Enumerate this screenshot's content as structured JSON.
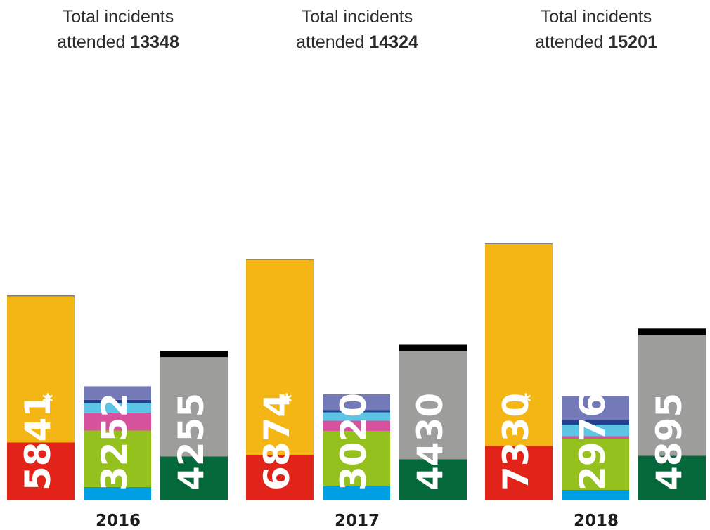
{
  "chart_data": {
    "type": "stacked-bar",
    "groups": [
      {
        "year": "2016",
        "heading": "Total incidents",
        "heading_line2": "attended",
        "total": "13348",
        "bars": [
          {
            "label": "5841",
            "asterisk": "*",
            "value": 5841,
            "segments": [
              {
                "value": 1650,
                "color": "#e2231a"
              },
              {
                "value": 4160,
                "color": "#f4b614"
              },
              {
                "value": 31,
                "color": "#7f7f7f"
              }
            ]
          },
          {
            "label": "3252",
            "asterisk": "",
            "value": 3252,
            "segments": [
              {
                "value": 380,
                "color": "#009fe3"
              },
              {
                "value": 1610,
                "color": "#95c11f"
              },
              {
                "value": 510,
                "color": "#d6529c"
              },
              {
                "value": 280,
                "color": "#5bc5e3"
              },
              {
                "value": 82,
                "color": "#243f8f"
              },
              {
                "value": 390,
                "color": "#7479b8"
              }
            ]
          },
          {
            "label": "4255",
            "asterisk": "",
            "value": 4255,
            "segments": [
              {
                "value": 1250,
                "color": "#05683a"
              },
              {
                "value": 2830,
                "color": "#9d9d9c"
              },
              {
                "value": 175,
                "color": "#000000"
              }
            ]
          }
        ]
      },
      {
        "year": "2017",
        "heading": "Total incidents",
        "heading_line2": "attended",
        "total": "14324",
        "bars": [
          {
            "label": "6874",
            "asterisk": "*",
            "value": 6874,
            "segments": [
              {
                "value": 1300,
                "color": "#e2231a"
              },
              {
                "value": 5543,
                "color": "#f4b614"
              },
              {
                "value": 31,
                "color": "#7f7f7f"
              }
            ]
          },
          {
            "label": "3020",
            "asterisk": "",
            "value": 3020,
            "segments": [
              {
                "value": 400,
                "color": "#009fe3"
              },
              {
                "value": 1580,
                "color": "#95c11f"
              },
              {
                "value": 290,
                "color": "#d6529c"
              },
              {
                "value": 240,
                "color": "#5bc5e3"
              },
              {
                "value": 60,
                "color": "#243f8f"
              },
              {
                "value": 450,
                "color": "#7479b8"
              }
            ]
          },
          {
            "label": "4430",
            "asterisk": "",
            "value": 4430,
            "segments": [
              {
                "value": 1170,
                "color": "#05683a"
              },
              {
                "value": 3090,
                "color": "#9d9d9c"
              },
              {
                "value": 170,
                "color": "#000000"
              }
            ]
          }
        ]
      },
      {
        "year": "2018",
        "heading": "Total incidents",
        "heading_line2": "attended",
        "total": "15201",
        "bars": [
          {
            "label": "7330",
            "asterisk": "*",
            "value": 7330,
            "segments": [
              {
                "value": 1550,
                "color": "#e2231a"
              },
              {
                "value": 5749,
                "color": "#f4b614"
              },
              {
                "value": 31,
                "color": "#7f7f7f"
              }
            ]
          },
          {
            "label": "2976",
            "asterisk": "",
            "value": 2976,
            "segments": [
              {
                "value": 300,
                "color": "#009fe3"
              },
              {
                "value": 1460,
                "color": "#95c11f"
              },
              {
                "value": 70,
                "color": "#d6529c"
              },
              {
                "value": 330,
                "color": "#5bc5e3"
              },
              {
                "value": 120,
                "color": "#243f8f"
              },
              {
                "value": 696,
                "color": "#7479b8"
              }
            ]
          },
          {
            "label": "4895",
            "asterisk": "",
            "value": 4895,
            "segments": [
              {
                "value": 1270,
                "color": "#05683a"
              },
              {
                "value": 3440,
                "color": "#9d9d9c"
              },
              {
                "value": 185,
                "color": "#000000"
              }
            ]
          }
        ]
      }
    ]
  }
}
